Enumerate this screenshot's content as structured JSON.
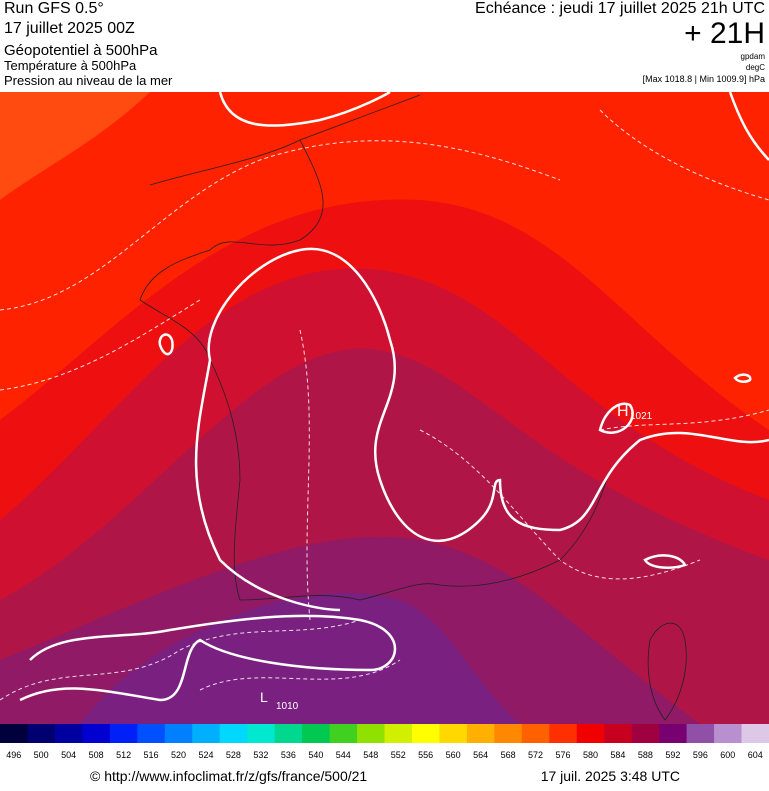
{
  "header": {
    "model": "Run GFS 0.5°",
    "run": "17 juillet 2025 00Z",
    "title": "Géopotentiel à 500hPa",
    "layer2": "Température à 500hPa",
    "layer3": "Pression au niveau de la mer",
    "echeance": "Echéance : jeudi 17 juillet 2025 21h UTC",
    "lead": "+ 21H",
    "unit1": "gpdam",
    "unit2": "degC",
    "range": "[Max 1018.8 | Min 1009.9] hPa"
  },
  "map": {
    "labels": [
      "1021",
      "1010"
    ],
    "markers": [
      "H",
      "L"
    ]
  },
  "colorbar": {
    "ticks": [
      496,
      500,
      504,
      508,
      512,
      516,
      520,
      524,
      528,
      532,
      536,
      540,
      544,
      548,
      552,
      556,
      560,
      564,
      568,
      572,
      576,
      580,
      584,
      588,
      592,
      596,
      600,
      604
    ],
    "colors": [
      "#00003c",
      "#000070",
      "#0000a0",
      "#0000d0",
      "#0020f8",
      "#0050ff",
      "#0080ff",
      "#00b0ff",
      "#00d8ff",
      "#00e8d0",
      "#00d890",
      "#00c850",
      "#40d020",
      "#90e000",
      "#d0f000",
      "#ffff00",
      "#ffd800",
      "#ffb000",
      "#ff8800",
      "#ff6000",
      "#ff3000",
      "#f00000",
      "#c80020",
      "#a00040",
      "#780070",
      "#9050a8",
      "#b890d0",
      "#ddc8e8"
    ]
  },
  "footer": {
    "url": "© http://www.infoclimat.fr/z/gfs/france/500/21",
    "time": "17 juil. 2025  3:48 UTC"
  }
}
